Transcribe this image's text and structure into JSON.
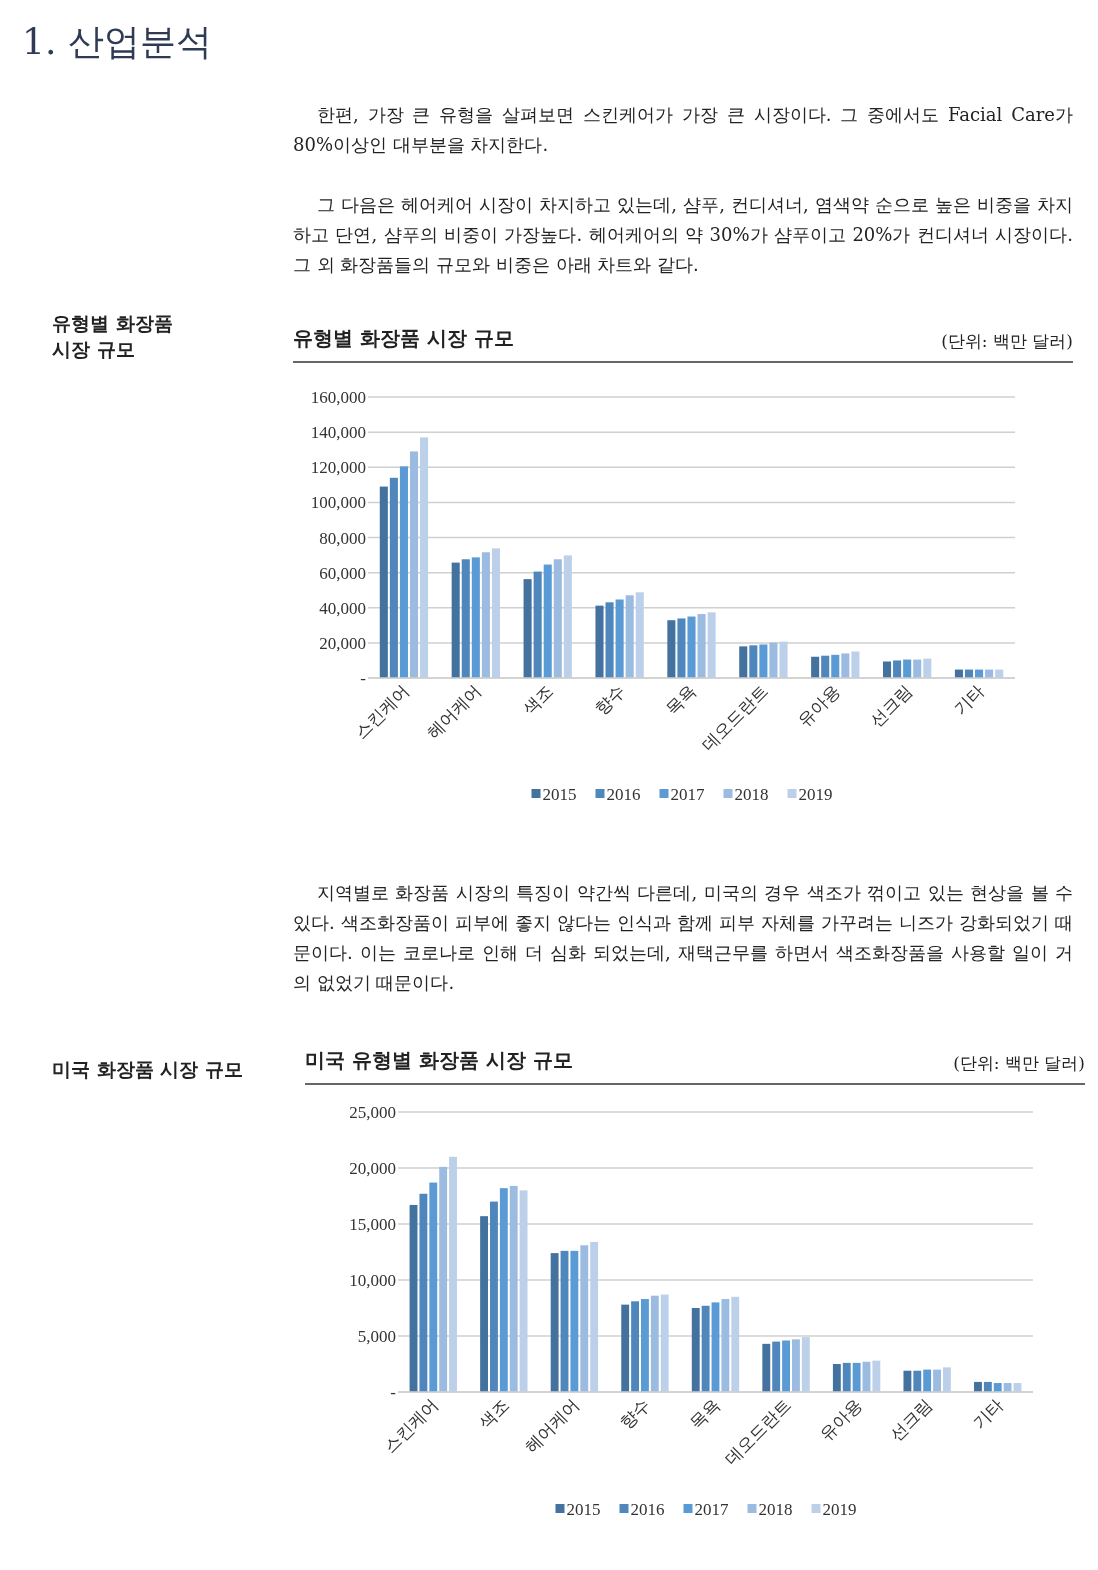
{
  "chart_data": [
    {
      "type": "bar",
      "title": "유형별 화장품 시장 규모",
      "annotations": [
        "1. 산업분석",
        "한편, 가장 큰 유형을 살펴보면 스킨케어가 가장 큰 시장이다. 그 중에서도 Facial Care가 80%이상인 대부분을 차지한다.",
        "그 다음은 헤어케어 시장이 차지하고 있는데, 샴푸, 컨디셔너, 염색약 순으로 높은 비중을 차지하고 단연, 샴푸의 비중이 가장높다. 헤어케어의 약 30%가 샴푸이고 20%가 컨디셔너 시장이다.  그 외 화장품들의 규모와 비중은 아래 차트와 같다.",
        "유형별 화장품 시장 규모",
        "(단위: 백만 달러)"
      ],
      "categories": [
        "스킨케어",
        "헤어케어",
        "색조",
        "향수",
        "목욕",
        "데오드란트",
        "유아용",
        "선크림",
        "기타"
      ],
      "series": [
        {
          "name": "2015",
          "color": "#44729e",
          "values": [
            109000,
            65700,
            56300,
            41200,
            32900,
            18000,
            12100,
            9400,
            4800
          ]
        },
        {
          "name": "2016",
          "color": "#4f86bb",
          "values": [
            114000,
            67600,
            60600,
            43100,
            33900,
            18600,
            12700,
            10000,
            4800
          ]
        },
        {
          "name": "2017",
          "color": "#5b9bd5",
          "values": [
            120500,
            68700,
            64600,
            44700,
            35000,
            19100,
            13200,
            10500,
            4800
          ]
        },
        {
          "name": "2018",
          "color": "#9bbbe0",
          "values": [
            129000,
            71600,
            67600,
            47100,
            36400,
            20200,
            14000,
            10500,
            4800
          ]
        },
        {
          "name": "2019",
          "color": "#bdd0ea",
          "values": [
            137000,
            73800,
            69800,
            48800,
            37400,
            20700,
            15100,
            11000,
            4800
          ]
        }
      ],
      "ylim": [
        0,
        160000
      ],
      "yticks": [
        {
          "value": 0,
          "label": "-"
        },
        {
          "value": 20000,
          "label": "20,000"
        },
        {
          "value": 40000,
          "label": "40,000"
        },
        {
          "value": 60000,
          "label": "60,000"
        },
        {
          "value": 80000,
          "label": "80,000"
        },
        {
          "value": 100000,
          "label": "100,000"
        },
        {
          "value": 120000,
          "label": "120,000"
        },
        {
          "value": 140000,
          "label": "140,000"
        },
        {
          "value": 160000,
          "label": "160,000"
        }
      ],
      "grid": "y",
      "legend": "bottom"
    },
    {
      "type": "bar",
      "title": "미국 유형별 화장품 시장 규모",
      "annotations": [
        "지역별로 화장품 시장의 특징이 약간씩 다른데, 미국의 경우 색조가 꺾이고 있는 현상을 볼 수 있다. 색조화장품이 피부에 좋지 않다는 인식과 함께 피부 자체를 가꾸려는 니즈가 강화되었기 때문이다. 이는 코로나로 인해 더 심화 되었는데, 재택근무를 하면서 색조화장품을 사용할 일이 거의 없었기 때문이다.",
        "미국 화장품 시장 규모",
        "(단위: 백만 달러)"
      ],
      "categories": [
        "스킨케어",
        "색조",
        "헤어케어",
        "향수",
        "목욕",
        "데오드란트",
        "유아용",
        "선크림",
        "기타"
      ],
      "series": [
        {
          "name": "2015",
          "color": "#44729e",
          "values": [
            16700,
            15700,
            12400,
            7800,
            7500,
            4300,
            2500,
            1900,
            900
          ]
        },
        {
          "name": "2016",
          "color": "#4f86bb",
          "values": [
            17700,
            17000,
            12600,
            8100,
            7700,
            4500,
            2600,
            1900,
            900
          ]
        },
        {
          "name": "2017",
          "color": "#5b9bd5",
          "values": [
            18700,
            18200,
            12600,
            8300,
            8000,
            4600,
            2600,
            2000,
            800
          ]
        },
        {
          "name": "2018",
          "color": "#9bbbe0",
          "values": [
            20100,
            18400,
            13100,
            8600,
            8300,
            4700,
            2700,
            2000,
            800
          ]
        },
        {
          "name": "2019",
          "color": "#bdd0ea",
          "values": [
            21000,
            18000,
            13400,
            8700,
            8500,
            4900,
            2800,
            2200,
            800
          ]
        }
      ],
      "ylim": [
        0,
        25000
      ],
      "yticks": [
        {
          "value": 0,
          "label": "-"
        },
        {
          "value": 5000,
          "label": "5,000"
        },
        {
          "value": 10000,
          "label": "10,000"
        },
        {
          "value": 15000,
          "label": "15,000"
        },
        {
          "value": 20000,
          "label": "20,000"
        },
        {
          "value": 25000,
          "label": "25,000"
        }
      ],
      "grid": "y",
      "legend": "bottom"
    }
  ]
}
